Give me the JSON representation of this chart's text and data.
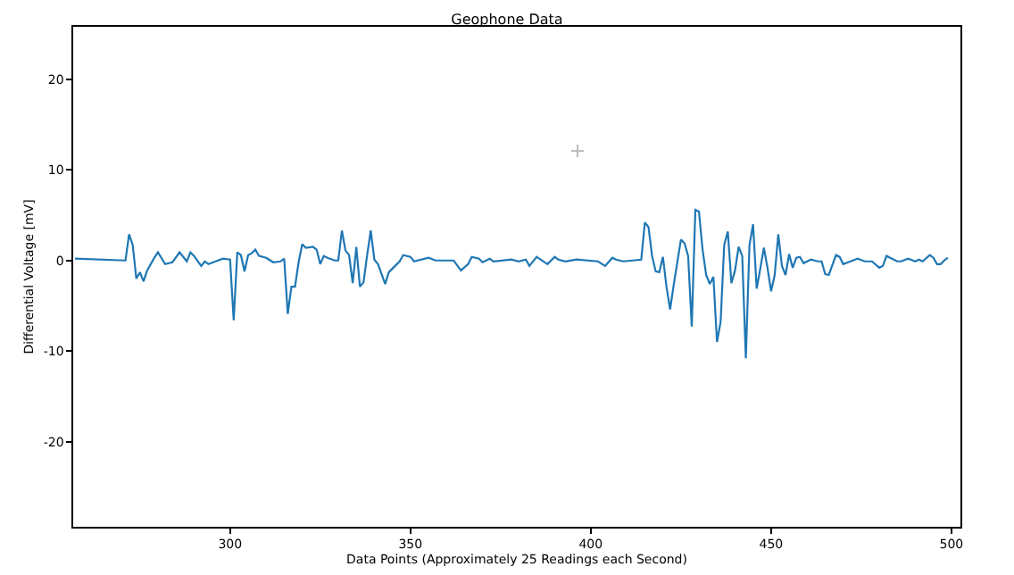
{
  "chart_data": {
    "type": "line",
    "title": "Geophone Data",
    "xlabel": "Data Points (Approximately 25 Readings each Second)",
    "ylabel": "Differential Voltage [mV]",
    "xlim": [
      256.5,
      502.5
    ],
    "xticks": [
      300,
      350,
      400,
      450,
      500
    ],
    "ylim": [
      -29.4,
      25.8
    ],
    "yticks": [
      -20,
      -10,
      0,
      10,
      20
    ],
    "grid": false,
    "series": [
      {
        "color": "#1f77b4",
        "x": [
          257,
          271,
          272,
          273,
          274,
          275,
          276,
          277,
          279,
          280,
          282,
          284,
          286,
          288,
          289,
          290,
          292,
          293,
          294,
          296,
          298,
          300,
          301,
          302,
          303,
          304,
          305,
          306,
          307,
          308,
          310,
          312,
          314,
          315,
          316,
          317,
          318,
          319,
          320,
          321,
          323,
          324,
          325,
          326,
          327,
          329,
          330,
          331,
          332,
          333,
          334,
          335,
          336,
          337,
          338,
          339,
          340,
          341,
          343,
          344,
          345,
          347,
          348,
          350,
          351,
          355,
          357,
          362,
          364,
          366,
          367,
          369,
          370,
          372,
          373,
          378,
          380,
          382,
          383,
          385,
          388,
          390,
          391,
          393,
          396,
          402,
          404,
          406,
          407,
          409,
          414,
          415,
          416,
          417,
          418,
          419,
          420,
          421,
          422,
          423,
          425,
          426,
          427,
          428,
          429,
          430,
          431,
          432,
          433,
          434,
          435,
          436,
          437,
          438,
          439,
          440,
          441,
          442,
          443,
          444,
          445,
          446,
          447,
          448,
          449,
          450,
          451,
          452,
          453,
          454,
          455,
          456,
          457,
          458,
          459,
          461,
          463,
          464,
          465,
          466,
          468,
          469,
          470,
          472,
          474,
          476,
          478,
          480,
          481,
          482,
          483,
          485,
          486,
          488,
          490,
          491,
          492,
          494,
          495,
          496,
          497,
          498,
          499
        ],
        "values": [
          0.2,
          0,
          2.9,
          1.7,
          -2.0,
          -1.3,
          -2.3,
          -1.1,
          0.3,
          0.9,
          -0.4,
          -0.2,
          0.9,
          -0.1,
          0.9,
          0.5,
          -0.6,
          -0.1,
          -0.4,
          -0.1,
          0.2,
          0.1,
          -6.6,
          0.9,
          0.6,
          -1.2,
          0.6,
          0.8,
          1.2,
          0.5,
          0.3,
          -0.2,
          -0.1,
          0.2,
          -5.9,
          -2.9,
          -2.9,
          -0.2,
          1.8,
          1.4,
          1.5,
          1.2,
          -0.4,
          0.5,
          0.3,
          0,
          0,
          3.3,
          1.1,
          0.6,
          -2.5,
          1.5,
          -2.9,
          -2.4,
          0.6,
          3.3,
          0.1,
          -0.4,
          -2.6,
          -1.3,
          -0.9,
          -0.1,
          0.6,
          0.4,
          -0.1,
          0.3,
          0,
          0,
          -1.1,
          -0.4,
          0.4,
          0.2,
          -0.2,
          0.2,
          -0.1,
          0.1,
          -0.1,
          0.1,
          -0.6,
          0.4,
          -0.4,
          0.4,
          0.1,
          -0.1,
          0.1,
          -0.1,
          -0.6,
          0.3,
          0.1,
          -0.1,
          0.1,
          4.2,
          3.7,
          0.5,
          -1.2,
          -1.3,
          0.4,
          -2.9,
          -5.4,
          -2.7,
          2.3,
          1.9,
          0.5,
          -7.3,
          5.6,
          5.4,
          1.2,
          -1.6,
          -2.6,
          -1.8,
          -9.0,
          -6.8,
          1.7,
          3.2,
          -2.5,
          -1.1,
          1.5,
          0.5,
          -10.8,
          1.7,
          4.0,
          -3.1,
          -0.9,
          1.4,
          -0.8,
          -3.4,
          -1.6,
          2.9,
          -0.6,
          -1.6,
          0.7,
          -0.8,
          0.3,
          0.4,
          -0.3,
          0.1,
          -0.1,
          -0.1,
          -1.5,
          -1.6,
          0.6,
          0.4,
          -0.4,
          -0.1,
          0.2,
          -0.1,
          -0.1,
          -0.8,
          -0.6,
          0.5,
          0.3,
          -0.1,
          -0.1,
          0.2,
          -0.1,
          0.1,
          -0.1,
          0.6,
          0.3,
          -0.4,
          -0.4,
          0,
          0.3
        ]
      }
    ]
  }
}
